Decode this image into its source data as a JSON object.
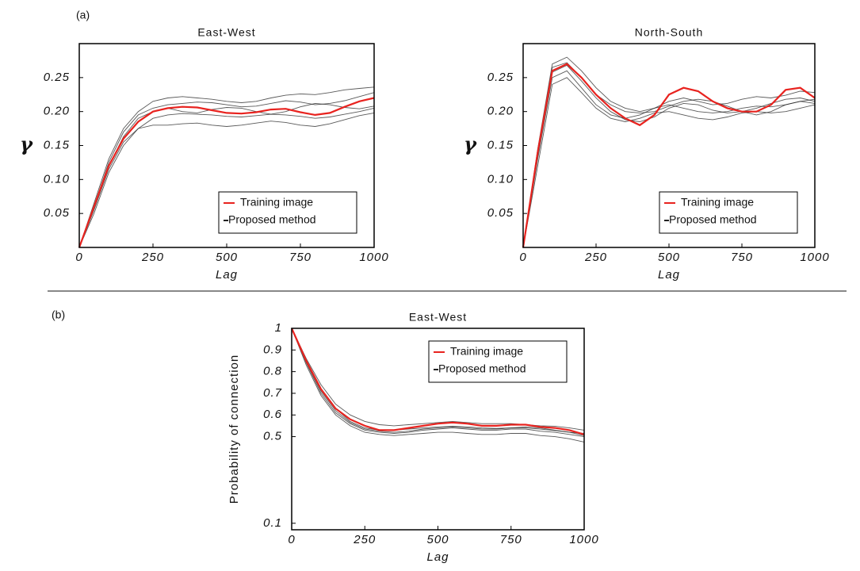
{
  "panel_labels": [
    "(a)",
    "(b)"
  ],
  "chart_data": [
    {
      "type": "line",
      "title": "East-West",
      "xlabel": "Lag",
      "ylabel": "γ",
      "x": [
        0,
        50,
        100,
        150,
        200,
        250,
        300,
        350,
        400,
        450,
        500,
        550,
        600,
        650,
        700,
        750,
        800,
        850,
        900,
        950,
        1000
      ],
      "xlim": [
        0,
        1000
      ],
      "xticks": [
        0,
        250,
        500,
        750,
        1000
      ],
      "ylim": [
        0,
        0.3
      ],
      "yticks": [
        0.05,
        {
          "value": 0.1,
          "label": "0.10"
        },
        0.15,
        {
          "value": 0.2,
          "label": "0.20"
        },
        0.25
      ],
      "legend": "lower right",
      "series": [
        {
          "name": "Training image",
          "color": "#e8231f",
          "values": [
            0,
            0.06,
            0.12,
            0.16,
            0.185,
            0.2,
            0.205,
            0.207,
            0.206,
            0.202,
            0.198,
            0.197,
            0.199,
            0.203,
            0.204,
            0.199,
            0.195,
            0.198,
            0.207,
            0.215,
            0.22
          ]
        },
        {
          "name": "Proposed method",
          "color": "#222222",
          "values": [
            0,
            0.05,
            0.11,
            0.15,
            0.175,
            0.19,
            0.195,
            0.197,
            0.196,
            0.195,
            0.193,
            0.192,
            0.194,
            0.196,
            0.195,
            0.193,
            0.19,
            0.192,
            0.196,
            0.2,
            0.205
          ]
        },
        {
          "name": "Proposed method",
          "color": "#222222",
          "values": [
            0,
            0.065,
            0.13,
            0.175,
            0.2,
            0.215,
            0.22,
            0.222,
            0.22,
            0.218,
            0.215,
            0.213,
            0.215,
            0.22,
            0.224,
            0.226,
            0.225,
            0.228,
            0.232,
            0.234,
            0.236
          ]
        },
        {
          "name": "Proposed method",
          "color": "#222222",
          "values": [
            0,
            0.055,
            0.115,
            0.155,
            0.175,
            0.18,
            0.18,
            0.182,
            0.183,
            0.18,
            0.178,
            0.18,
            0.183,
            0.186,
            0.184,
            0.18,
            0.178,
            0.182,
            0.188,
            0.194,
            0.198
          ]
        },
        {
          "name": "Proposed method",
          "color": "#222222",
          "values": [
            0,
            0.06,
            0.125,
            0.17,
            0.195,
            0.205,
            0.21,
            0.212,
            0.214,
            0.213,
            0.21,
            0.207,
            0.208,
            0.212,
            0.216,
            0.214,
            0.21,
            0.212,
            0.216,
            0.222,
            0.228
          ]
        },
        {
          "name": "Proposed method",
          "color": "#222222",
          "values": [
            0,
            0.058,
            0.12,
            0.163,
            0.19,
            0.2,
            0.205,
            0.2,
            0.198,
            0.203,
            0.206,
            0.205,
            0.2,
            0.196,
            0.2,
            0.207,
            0.212,
            0.21,
            0.206,
            0.204,
            0.208
          ]
        }
      ]
    },
    {
      "type": "line",
      "title": "North-South",
      "xlabel": "Lag",
      "ylabel": "γ",
      "x": [
        0,
        50,
        100,
        150,
        200,
        250,
        300,
        350,
        400,
        450,
        500,
        550,
        600,
        650,
        700,
        750,
        800,
        850,
        900,
        950,
        1000
      ],
      "xlim": [
        0,
        1000
      ],
      "xticks": [
        0,
        250,
        500,
        750,
        1000
      ],
      "ylim": [
        0,
        0.3
      ],
      "yticks": [
        0.05,
        {
          "value": 0.1,
          "label": "0.10"
        },
        0.15,
        {
          "value": 0.2,
          "label": "0.20"
        },
        0.25
      ],
      "legend": "lower right",
      "series": [
        {
          "name": "Training image",
          "color": "#e8231f",
          "values": [
            0,
            0.14,
            0.26,
            0.27,
            0.25,
            0.225,
            0.205,
            0.19,
            0.18,
            0.195,
            0.225,
            0.235,
            0.23,
            0.215,
            0.205,
            0.2,
            0.2,
            0.21,
            0.232,
            0.235,
            0.22
          ]
        },
        {
          "name": "Proposed method",
          "color": "#222222",
          "values": [
            0,
            0.13,
            0.25,
            0.26,
            0.235,
            0.21,
            0.195,
            0.19,
            0.195,
            0.205,
            0.21,
            0.205,
            0.2,
            0.198,
            0.2,
            0.205,
            0.208,
            0.207,
            0.21,
            0.215,
            0.218
          ]
        },
        {
          "name": "Proposed method",
          "color": "#222222",
          "values": [
            0,
            0.145,
            0.27,
            0.28,
            0.26,
            0.235,
            0.215,
            0.205,
            0.2,
            0.205,
            0.215,
            0.22,
            0.215,
            0.21,
            0.212,
            0.218,
            0.222,
            0.22,
            0.224,
            0.23,
            0.228
          ]
        },
        {
          "name": "Proposed method",
          "color": "#222222",
          "values": [
            0,
            0.12,
            0.24,
            0.25,
            0.228,
            0.205,
            0.19,
            0.185,
            0.19,
            0.198,
            0.2,
            0.195,
            0.19,
            0.188,
            0.192,
            0.198,
            0.2,
            0.198,
            0.2,
            0.205,
            0.21
          ]
        },
        {
          "name": "Proposed method",
          "color": "#222222",
          "values": [
            0,
            0.14,
            0.265,
            0.272,
            0.25,
            0.225,
            0.21,
            0.2,
            0.198,
            0.2,
            0.208,
            0.215,
            0.218,
            0.215,
            0.208,
            0.2,
            0.195,
            0.2,
            0.21,
            0.215,
            0.212
          ]
        },
        {
          "name": "Proposed method",
          "color": "#222222",
          "values": [
            0,
            0.135,
            0.258,
            0.268,
            0.245,
            0.22,
            0.2,
            0.188,
            0.185,
            0.192,
            0.205,
            0.212,
            0.21,
            0.202,
            0.198,
            0.2,
            0.205,
            0.212,
            0.218,
            0.22,
            0.215
          ]
        }
      ]
    },
    {
      "type": "line",
      "title": "East-West",
      "xlabel": "Lag",
      "ylabel": "Probability of connection",
      "x": [
        0,
        50,
        100,
        150,
        200,
        250,
        300,
        350,
        400,
        450,
        500,
        550,
        600,
        650,
        700,
        750,
        800,
        850,
        900,
        950,
        1000
      ],
      "xlim": [
        0,
        1000
      ],
      "xticks": [
        0,
        250,
        500,
        750,
        1000
      ],
      "ylim": [
        0.07,
        1
      ],
      "yticks": [
        0.1,
        0.5,
        0.6,
        0.7,
        0.8,
        0.9,
        1
      ],
      "legend": "upper right",
      "series": [
        {
          "name": "Training image",
          "color": "#e8231f",
          "values": [
            1,
            0.85,
            0.72,
            0.63,
            0.58,
            0.55,
            0.53,
            0.53,
            0.54,
            0.55,
            0.56,
            0.565,
            0.56,
            0.55,
            0.55,
            0.555,
            0.555,
            0.545,
            0.54,
            0.53,
            0.51
          ]
        },
        {
          "name": "Proposed method",
          "color": "#222222",
          "values": [
            1,
            0.83,
            0.69,
            0.6,
            0.55,
            0.52,
            0.51,
            0.505,
            0.51,
            0.515,
            0.52,
            0.52,
            0.515,
            0.51,
            0.51,
            0.515,
            0.515,
            0.505,
            0.5,
            0.49,
            0.475
          ]
        },
        {
          "name": "Proposed method",
          "color": "#222222",
          "values": [
            1,
            0.86,
            0.74,
            0.65,
            0.6,
            0.57,
            0.555,
            0.55,
            0.555,
            0.56,
            0.565,
            0.57,
            0.565,
            0.56,
            0.56,
            0.56,
            0.555,
            0.55,
            0.548,
            0.54,
            0.53
          ]
        },
        {
          "name": "Proposed method",
          "color": "#222222",
          "values": [
            1,
            0.84,
            0.7,
            0.61,
            0.56,
            0.53,
            0.52,
            0.515,
            0.52,
            0.53,
            0.535,
            0.54,
            0.535,
            0.53,
            0.53,
            0.535,
            0.535,
            0.525,
            0.52,
            0.51,
            0.5
          ]
        },
        {
          "name": "Proposed method",
          "color": "#222222",
          "values": [
            1,
            0.85,
            0.72,
            0.63,
            0.57,
            0.54,
            0.53,
            0.53,
            0.535,
            0.54,
            0.545,
            0.548,
            0.545,
            0.54,
            0.538,
            0.54,
            0.545,
            0.54,
            0.53,
            0.52,
            0.515
          ]
        },
        {
          "name": "Proposed method",
          "color": "#222222",
          "values": [
            1,
            0.845,
            0.71,
            0.62,
            0.565,
            0.535,
            0.525,
            0.52,
            0.525,
            0.535,
            0.54,
            0.545,
            0.54,
            0.535,
            0.535,
            0.54,
            0.54,
            0.535,
            0.528,
            0.52,
            0.505
          ]
        }
      ]
    }
  ]
}
